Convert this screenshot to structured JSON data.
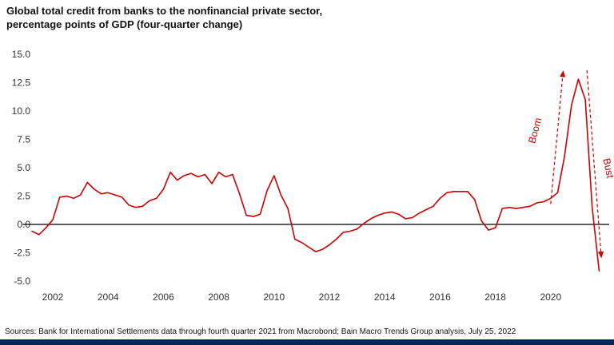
{
  "title": {
    "line1": "Global total credit from banks to the nonfinancial private sector,",
    "line2": "percentage points of GDP (four-quarter change)"
  },
  "footer": {
    "source": "Sources: Bank for International Settlements data through fourth quarter 2021 from Macrobond; Bain Macro Trends Group analysis, July 25, 2022"
  },
  "colors": {
    "line": "#cc0000",
    "annotation": "#cc0000",
    "zero_line": "#000000",
    "footer_bar": "#002855"
  },
  "chart_data": {
    "type": "line",
    "title": "Global total credit from banks to the nonfinancial private sector, percentage points of GDP (four-quarter change)",
    "xlabel": "",
    "ylabel": "percentage points of GDP",
    "ylim": [
      -5.0,
      15.0
    ],
    "xlim": [
      2001,
      2022.3
    ],
    "grid": false,
    "zero_line": true,
    "x_start": 2001.25,
    "x_step": 0.25,
    "x_ticks": [
      2002,
      2004,
      2006,
      2008,
      2010,
      2012,
      2014,
      2016,
      2018,
      2020
    ],
    "y_ticks": [
      "15.0",
      "12.5",
      "10.0",
      "7.5",
      "5.0",
      "2.5",
      "0.0",
      "-2.5",
      "-5.0"
    ],
    "values": [
      -0.6,
      -0.9,
      -0.3,
      0.4,
      2.4,
      2.5,
      2.3,
      2.6,
      3.7,
      3.1,
      2.7,
      2.8,
      2.6,
      2.4,
      1.7,
      1.5,
      1.6,
      2.1,
      2.3,
      3.1,
      4.6,
      3.9,
      4.3,
      4.5,
      4.2,
      4.4,
      3.6,
      4.6,
      4.2,
      4.4,
      2.7,
      0.8,
      0.7,
      0.9,
      3.0,
      4.3,
      2.6,
      1.4,
      -1.3,
      -1.6,
      -2.0,
      -2.4,
      -2.2,
      -1.8,
      -1.3,
      -0.7,
      -0.6,
      -0.4,
      0.1,
      0.5,
      0.8,
      1.0,
      1.1,
      0.9,
      0.5,
      0.6,
      1.0,
      1.3,
      1.6,
      2.3,
      2.8,
      2.9,
      2.9,
      2.9,
      2.2,
      0.3,
      -0.5,
      -0.3,
      1.4,
      1.5,
      1.4,
      1.5,
      1.6,
      1.9,
      2.0,
      2.3,
      2.8,
      6.0,
      10.5,
      12.8,
      11.0,
      1.5,
      -4.1
    ],
    "annotations": [
      {
        "label": "Boom",
        "x_year": 2019.55,
        "y_value": 8.2,
        "rotation": -75,
        "arrow": {
          "from_year": 2020.0,
          "from_value": 1.8,
          "to_year": 2020.45,
          "to_value": 13.5
        }
      },
      {
        "label": "Bust",
        "x_year": 2021.97,
        "y_value": 4.9,
        "rotation": 78,
        "arrow": {
          "from_year": 2021.31,
          "from_value": 13.6,
          "to_year": 2021.83,
          "to_value": -2.9
        }
      }
    ]
  }
}
